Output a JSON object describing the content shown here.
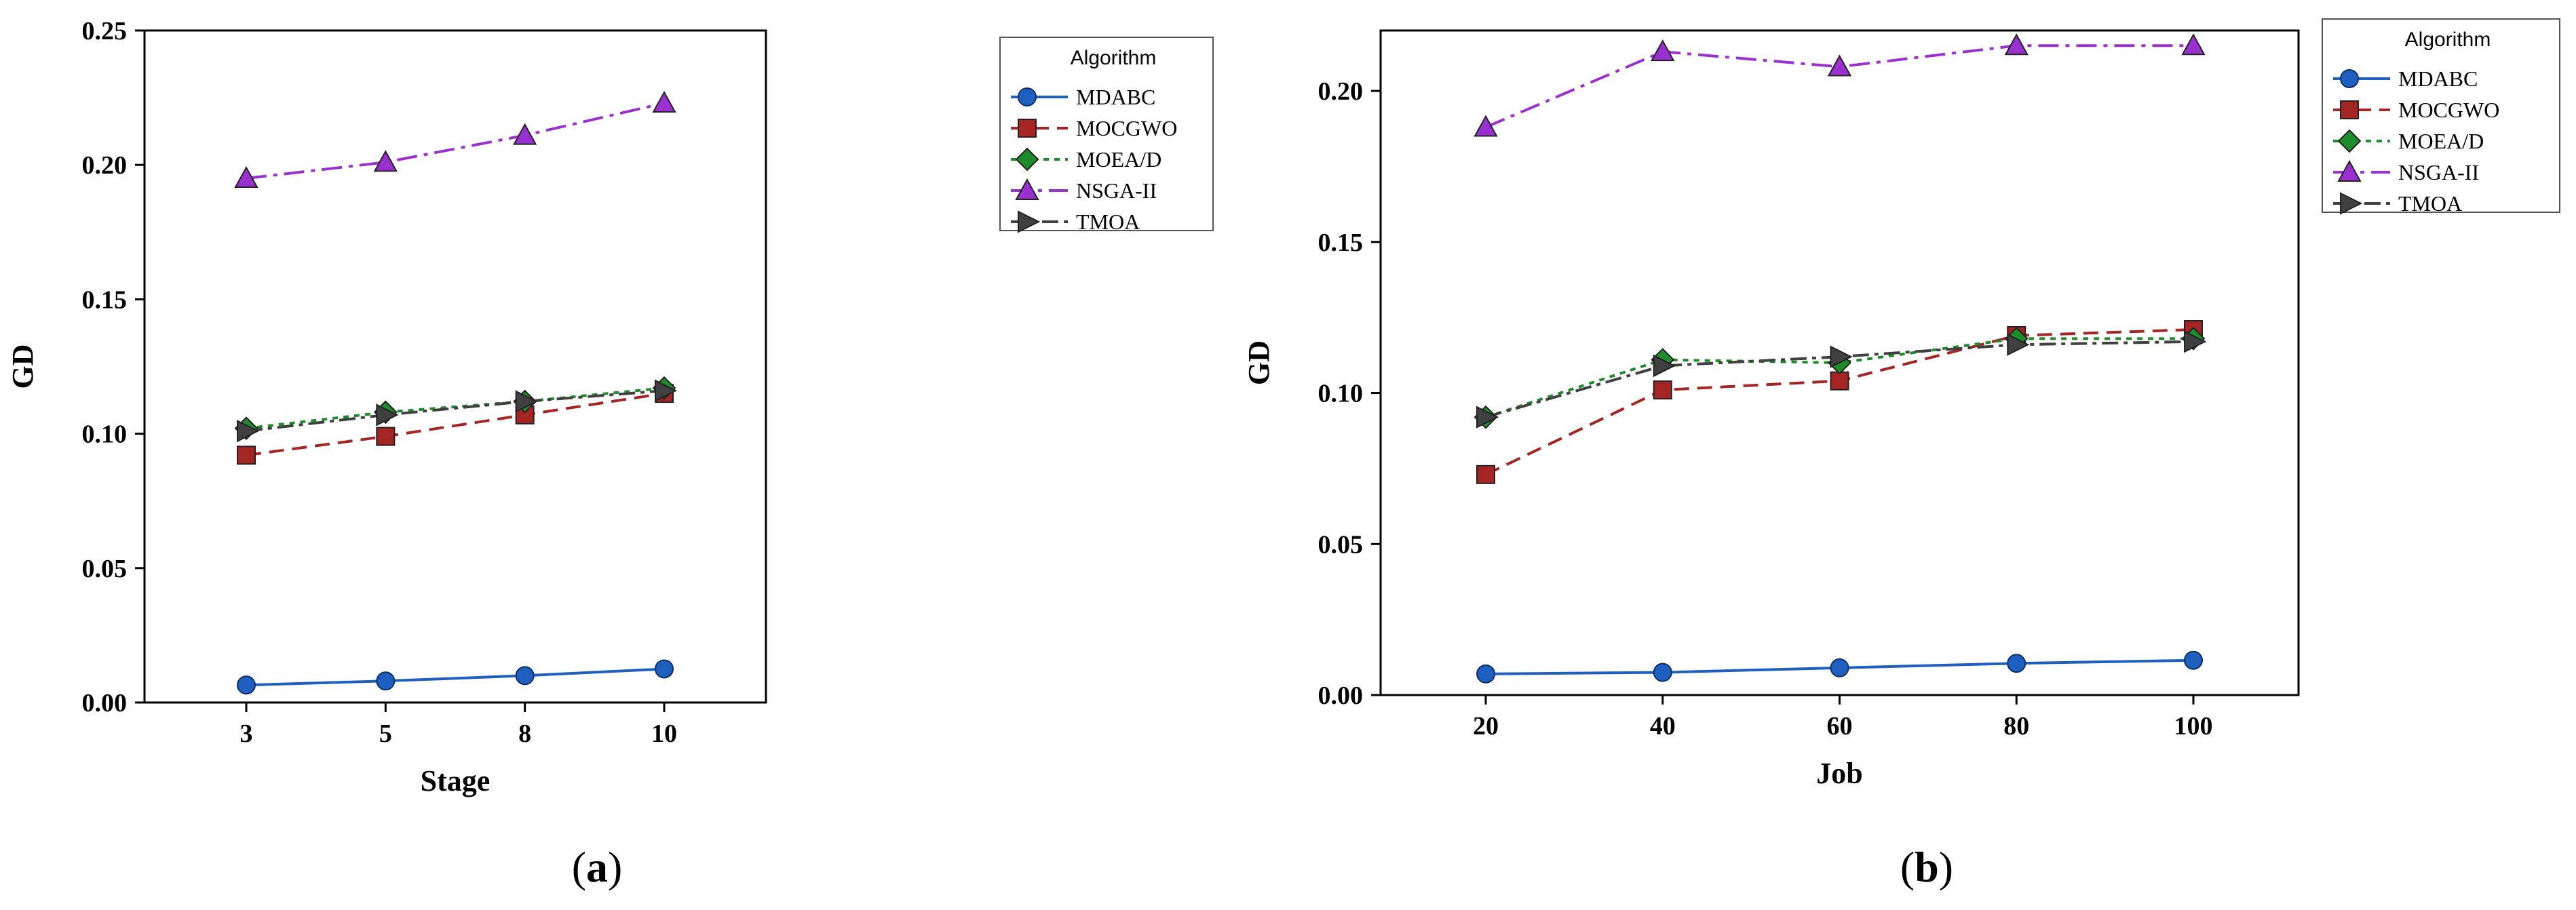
{
  "chart_data": [
    {
      "type": "line",
      "panel_label": "a",
      "xlabel": "Stage",
      "ylabel": "GD",
      "categories": [
        "3",
        "5",
        "8",
        "10"
      ],
      "ylim": [
        0,
        0.25
      ],
      "yticks": [
        "0.00",
        "0.05",
        "0.10",
        "0.15",
        "0.20",
        "0.25"
      ],
      "legend": {
        "title": "Algorithm",
        "placement": "outside-right"
      },
      "series": [
        {
          "name": "MDABC",
          "color": "#1f5fbf",
          "marker": "circle",
          "dash": "solid",
          "values": [
            0.0065,
            0.008,
            0.01,
            0.0125
          ]
        },
        {
          "name": "MOCGWO",
          "color": "#a52424",
          "marker": "square",
          "dash": "dashed",
          "values": [
            0.092,
            0.099,
            0.107,
            0.115
          ]
        },
        {
          "name": "MOEA/D",
          "color": "#1e8c2a",
          "marker": "diamond",
          "dash": "dotted",
          "values": [
            0.102,
            0.108,
            0.112,
            0.117
          ]
        },
        {
          "name": "NSGA-II",
          "color": "#9b30d0",
          "marker": "triangle",
          "dash": "dashdot",
          "values": [
            0.195,
            0.201,
            0.211,
            0.223
          ]
        },
        {
          "name": "TMOA",
          "color": "#404040",
          "marker": "rtriangle",
          "dash": "dashdot2",
          "values": [
            0.101,
            0.107,
            0.112,
            0.116
          ]
        }
      ]
    },
    {
      "type": "line",
      "panel_label": "b",
      "xlabel": "Job",
      "ylabel": "GD",
      "categories": [
        "20",
        "40",
        "60",
        "80",
        "100"
      ],
      "ylim": [
        0,
        0.22
      ],
      "yticks": [
        "0.00",
        "0.05",
        "0.10",
        "0.15",
        "0.20"
      ],
      "legend": {
        "title": "Algorithm",
        "placement": "outside-right"
      },
      "series": [
        {
          "name": "MDABC",
          "color": "#1f5fbf",
          "marker": "circle",
          "dash": "solid",
          "values": [
            0.007,
            0.0075,
            0.009,
            0.0105,
            0.0115
          ]
        },
        {
          "name": "MOCGWO",
          "color": "#a52424",
          "marker": "square",
          "dash": "dashed",
          "values": [
            0.073,
            0.101,
            0.104,
            0.119,
            0.121
          ]
        },
        {
          "name": "MOEA/D",
          "color": "#1e8c2a",
          "marker": "diamond",
          "dash": "dotted",
          "values": [
            0.092,
            0.111,
            0.11,
            0.118,
            0.118
          ]
        },
        {
          "name": "NSGA-II",
          "color": "#9b30d0",
          "marker": "triangle",
          "dash": "dashdot",
          "values": [
            0.188,
            0.213,
            0.208,
            0.215,
            0.215
          ]
        },
        {
          "name": "TMOA",
          "color": "#404040",
          "marker": "rtriangle",
          "dash": "dashdot2",
          "values": [
            0.092,
            0.109,
            0.112,
            0.116,
            0.117
          ]
        }
      ]
    }
  ]
}
